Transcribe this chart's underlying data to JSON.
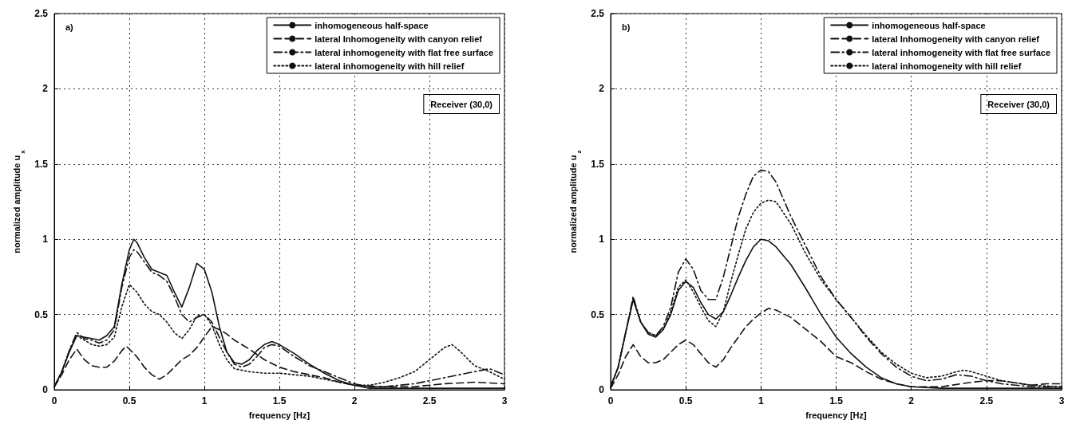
{
  "chart_data": [
    {
      "type": "line",
      "xlabel": "frequency [Hz]",
      "ylabel": "normalized amplitude u$_{x}$",
      "xlim": [
        0,
        3
      ],
      "ylim": [
        0,
        2.5
      ],
      "xticks": [
        0,
        0.5,
        1,
        1.5,
        2,
        2.5,
        3
      ],
      "yticks": [
        0,
        0.5,
        1,
        1.5,
        2,
        2.5
      ],
      "grid": true,
      "legend": "top right",
      "marker": "none",
      "annotations": [
        "a)",
        "Receiver (30,0)"
      ],
      "series": [
        {
          "name": "inhomogeneous half-space",
          "color": "#111111",
          "line_style": "solid",
          "x": [
            0,
            0.05,
            0.1,
            0.15,
            0.2,
            0.25,
            0.3,
            0.35,
            0.4,
            0.45,
            0.5,
            0.53,
            0.55,
            0.6,
            0.65,
            0.7,
            0.75,
            0.8,
            0.85,
            0.9,
            0.95,
            1,
            1.05,
            1.1,
            1.15,
            1.2,
            1.25,
            1.3,
            1.35,
            1.4,
            1.45,
            1.5,
            1.6,
            1.7,
            1.8,
            1.9,
            2,
            2.1,
            2.2,
            2.4,
            2.6,
            2.8,
            3
          ],
          "values": [
            0.02,
            0.12,
            0.25,
            0.36,
            0.35,
            0.34,
            0.33,
            0.36,
            0.42,
            0.7,
            0.93,
            1,
            0.98,
            0.88,
            0.8,
            0.78,
            0.76,
            0.65,
            0.55,
            0.68,
            0.84,
            0.8,
            0.65,
            0.42,
            0.25,
            0.18,
            0.17,
            0.2,
            0.26,
            0.3,
            0.32,
            0.3,
            0.24,
            0.17,
            0.11,
            0.06,
            0.03,
            0.01,
            0.01,
            0.01,
            0.01,
            0.01,
            0.01
          ]
        },
        {
          "name": "lateral Inhomogeneity with canyon relief",
          "color": "#111111",
          "line_style": "dashed",
          "x": [
            0,
            0.05,
            0.1,
            0.15,
            0.2,
            0.25,
            0.3,
            0.35,
            0.4,
            0.45,
            0.48,
            0.5,
            0.55,
            0.6,
            0.65,
            0.7,
            0.75,
            0.8,
            0.85,
            0.9,
            0.95,
            1,
            1.05,
            1.1,
            1.15,
            1.2,
            1.3,
            1.4,
            1.5,
            1.6,
            1.7,
            1.8,
            1.9,
            2,
            2.2,
            2.4,
            2.6,
            2.8,
            3
          ],
          "values": [
            0.02,
            0.1,
            0.2,
            0.27,
            0.2,
            0.16,
            0.15,
            0.15,
            0.19,
            0.26,
            0.29,
            0.27,
            0.22,
            0.15,
            0.1,
            0.07,
            0.1,
            0.15,
            0.2,
            0.23,
            0.28,
            0.35,
            0.42,
            0.4,
            0.37,
            0.33,
            0.27,
            0.2,
            0.15,
            0.12,
            0.1,
            0.08,
            0.05,
            0.03,
            0.02,
            0.02,
            0.04,
            0.05,
            0.04
          ]
        },
        {
          "name": "lateral inhomogeneity with flat free surface",
          "color": "#111111",
          "line_style": "dashdot",
          "x": [
            0,
            0.05,
            0.1,
            0.15,
            0.2,
            0.25,
            0.3,
            0.35,
            0.4,
            0.45,
            0.5,
            0.53,
            0.55,
            0.6,
            0.65,
            0.7,
            0.75,
            0.8,
            0.85,
            0.9,
            0.95,
            1,
            1.05,
            1.1,
            1.15,
            1.2,
            1.25,
            1.3,
            1.35,
            1.4,
            1.45,
            1.5,
            1.6,
            1.7,
            1.8,
            1.9,
            2,
            2.1,
            2.2,
            2.4,
            2.5,
            2.6,
            2.7,
            2.8,
            2.9,
            3
          ],
          "values": [
            0.02,
            0.12,
            0.26,
            0.38,
            0.34,
            0.33,
            0.31,
            0.33,
            0.4,
            0.68,
            0.88,
            0.93,
            0.92,
            0.85,
            0.78,
            0.76,
            0.72,
            0.62,
            0.5,
            0.45,
            0.48,
            0.5,
            0.45,
            0.35,
            0.25,
            0.17,
            0.15,
            0.17,
            0.22,
            0.28,
            0.3,
            0.29,
            0.22,
            0.16,
            0.12,
            0.08,
            0.04,
            0.02,
            0.02,
            0.04,
            0.06,
            0.08,
            0.1,
            0.12,
            0.14,
            0.1
          ]
        },
        {
          "name": "lateral inhomogeneity with hill relief",
          "color": "#111111",
          "line_style": "dotted",
          "x": [
            0,
            0.05,
            0.1,
            0.15,
            0.2,
            0.25,
            0.3,
            0.35,
            0.4,
            0.45,
            0.5,
            0.55,
            0.6,
            0.65,
            0.7,
            0.75,
            0.8,
            0.85,
            0.9,
            0.95,
            1,
            1.05,
            1.1,
            1.15,
            1.2,
            1.3,
            1.4,
            1.5,
            1.6,
            1.7,
            1.8,
            1.9,
            2,
            2.1,
            2.2,
            2.3,
            2.4,
            2.5,
            2.6,
            2.65,
            2.7,
            2.8,
            2.9,
            3
          ],
          "values": [
            0.02,
            0.12,
            0.26,
            0.36,
            0.33,
            0.3,
            0.29,
            0.3,
            0.35,
            0.55,
            0.7,
            0.65,
            0.57,
            0.52,
            0.5,
            0.45,
            0.38,
            0.34,
            0.4,
            0.49,
            0.5,
            0.43,
            0.3,
            0.2,
            0.14,
            0.12,
            0.11,
            0.11,
            0.1,
            0.09,
            0.07,
            0.05,
            0.03,
            0.03,
            0.05,
            0.08,
            0.12,
            0.2,
            0.28,
            0.3,
            0.26,
            0.16,
            0.12,
            0.07
          ]
        }
      ]
    },
    {
      "type": "line",
      "xlabel": "frequency [Hz]",
      "ylabel": "normalized amplitude u$_{z}$",
      "xlim": [
        0,
        3
      ],
      "ylim": [
        0,
        2.5
      ],
      "xticks": [
        0,
        0.5,
        1,
        1.5,
        2,
        2.5,
        3
      ],
      "yticks": [
        0,
        0.5,
        1,
        1.5,
        2,
        2.5
      ],
      "grid": true,
      "legend": "top right",
      "marker": "none",
      "annotations": [
        "b)",
        "Receiver (30,0)"
      ],
      "series": [
        {
          "name": "inhomogeneous half-space",
          "color": "#111111",
          "line_style": "solid",
          "x": [
            0,
            0.05,
            0.1,
            0.15,
            0.2,
            0.25,
            0.3,
            0.35,
            0.4,
            0.45,
            0.5,
            0.55,
            0.6,
            0.65,
            0.7,
            0.75,
            0.8,
            0.85,
            0.9,
            0.95,
            1,
            1.05,
            1.1,
            1.2,
            1.3,
            1.4,
            1.5,
            1.6,
            1.7,
            1.8,
            1.9,
            2,
            2.2,
            2.5,
            3
          ],
          "values": [
            0.02,
            0.15,
            0.38,
            0.6,
            0.45,
            0.37,
            0.35,
            0.4,
            0.5,
            0.66,
            0.72,
            0.68,
            0.58,
            0.5,
            0.47,
            0.52,
            0.63,
            0.75,
            0.86,
            0.95,
            1,
            0.99,
            0.95,
            0.83,
            0.67,
            0.5,
            0.35,
            0.24,
            0.15,
            0.08,
            0.04,
            0.02,
            0.01,
            0.01,
            0.01
          ]
        },
        {
          "name": "lateral Inhomogeneity with canyon relief",
          "color": "#111111",
          "line_style": "dashed",
          "x": [
            0,
            0.05,
            0.1,
            0.15,
            0.2,
            0.25,
            0.3,
            0.35,
            0.4,
            0.45,
            0.5,
            0.55,
            0.6,
            0.65,
            0.7,
            0.75,
            0.8,
            0.85,
            0.9,
            0.95,
            1,
            1.05,
            1.1,
            1.2,
            1.3,
            1.4,
            1.5,
            1.6,
            1.7,
            1.8,
            1.9,
            2,
            2.2,
            2.4,
            2.5,
            2.6,
            2.8,
            2.9,
            3
          ],
          "values": [
            0.01,
            0.1,
            0.22,
            0.3,
            0.22,
            0.18,
            0.18,
            0.2,
            0.25,
            0.3,
            0.33,
            0.3,
            0.24,
            0.18,
            0.15,
            0.2,
            0.28,
            0.35,
            0.42,
            0.47,
            0.51,
            0.54,
            0.53,
            0.48,
            0.4,
            0.32,
            0.22,
            0.18,
            0.12,
            0.07,
            0.04,
            0.02,
            0.02,
            0.05,
            0.06,
            0.06,
            0.03,
            0.04,
            0.04
          ]
        },
        {
          "name": "lateral inhomogeneity with flat free surface",
          "color": "#111111",
          "line_style": "dashdot",
          "x": [
            0,
            0.05,
            0.1,
            0.15,
            0.2,
            0.25,
            0.3,
            0.35,
            0.4,
            0.45,
            0.5,
            0.55,
            0.6,
            0.65,
            0.7,
            0.75,
            0.8,
            0.85,
            0.9,
            0.95,
            1,
            1.05,
            1.1,
            1.2,
            1.3,
            1.4,
            1.5,
            1.6,
            1.7,
            1.8,
            1.9,
            2,
            2.1,
            2.2,
            2.3,
            2.4,
            2.5,
            2.6,
            2.8,
            3
          ],
          "values": [
            0.02,
            0.15,
            0.38,
            0.62,
            0.45,
            0.38,
            0.36,
            0.42,
            0.55,
            0.78,
            0.87,
            0.8,
            0.66,
            0.6,
            0.6,
            0.75,
            0.95,
            1.15,
            1.3,
            1.42,
            1.46,
            1.45,
            1.38,
            1.15,
            0.95,
            0.75,
            0.6,
            0.48,
            0.35,
            0.24,
            0.15,
            0.09,
            0.06,
            0.07,
            0.1,
            0.09,
            0.06,
            0.04,
            0.02,
            0.02
          ]
        },
        {
          "name": "lateral inhomogeneity with hill relief",
          "color": "#111111",
          "line_style": "dotted",
          "x": [
            0,
            0.05,
            0.1,
            0.15,
            0.2,
            0.25,
            0.3,
            0.35,
            0.4,
            0.45,
            0.5,
            0.55,
            0.6,
            0.65,
            0.7,
            0.75,
            0.8,
            0.85,
            0.9,
            0.95,
            1,
            1.05,
            1.1,
            1.2,
            1.3,
            1.4,
            1.5,
            1.6,
            1.7,
            1.8,
            1.9,
            2,
            2.1,
            2.2,
            2.3,
            2.35,
            2.4,
            2.5,
            2.6,
            2.8,
            3
          ],
          "values": [
            0.02,
            0.15,
            0.38,
            0.6,
            0.45,
            0.38,
            0.36,
            0.4,
            0.52,
            0.68,
            0.73,
            0.65,
            0.55,
            0.46,
            0.42,
            0.52,
            0.72,
            0.9,
            1.07,
            1.18,
            1.24,
            1.26,
            1.25,
            1.1,
            0.9,
            0.73,
            0.6,
            0.48,
            0.36,
            0.25,
            0.17,
            0.11,
            0.08,
            0.09,
            0.12,
            0.13,
            0.12,
            0.09,
            0.06,
            0.03,
            0.02
          ]
        }
      ]
    }
  ]
}
